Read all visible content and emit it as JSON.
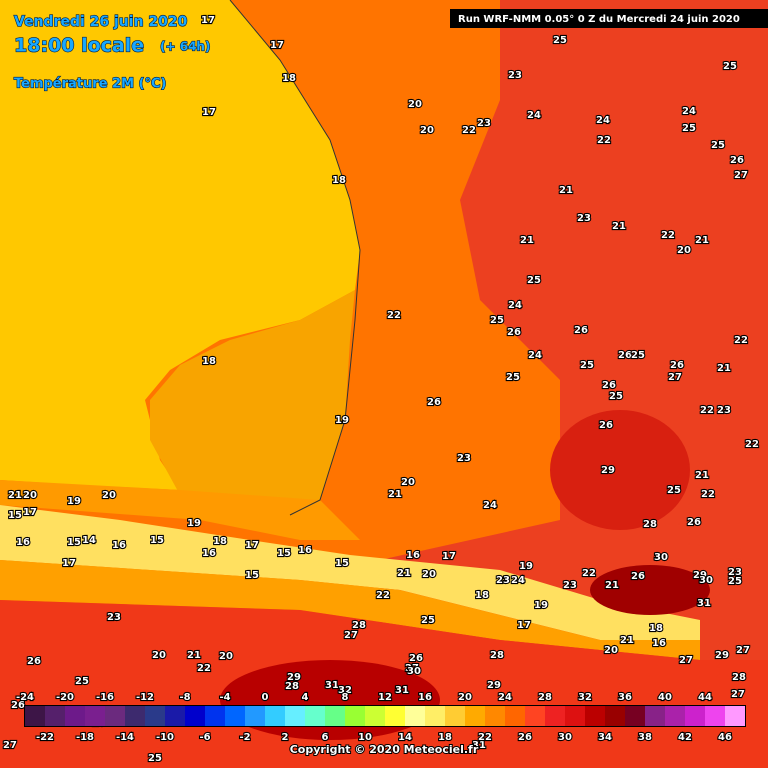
{
  "header": {
    "date": "Vendredi 26 juin 2020",
    "time": "18:00 locale",
    "lead": "(+ 64h)",
    "parameter": "Température 2M (°C)",
    "run": "Run WRF-NMM 0.05° 0 Z du Mercredi 24 juin 2020"
  },
  "map_labels": [
    "17",
    "17",
    "18",
    "17",
    "18",
    "18",
    "19",
    "20",
    "20",
    "22",
    "23",
    "23",
    "25",
    "24",
    "24",
    "22",
    "24",
    "25",
    "25",
    "25",
    "26",
    "27",
    "21",
    "23",
    "21",
    "22",
    "20",
    "21",
    "21",
    "25",
    "24",
    "25",
    "26",
    "22",
    "26",
    "24",
    "25",
    "26",
    "25",
    "26",
    "27",
    "22",
    "21",
    "25",
    "26",
    "25",
    "26",
    "22",
    "23",
    "22",
    "26",
    "23",
    "29",
    "21",
    "25",
    "22",
    "20",
    "21",
    "24",
    "28",
    "26",
    "21",
    "20",
    "19",
    "20",
    "19",
    "15",
    "17",
    "16",
    "15",
    "14",
    "16",
    "15",
    "18",
    "17",
    "16",
    "15",
    "16",
    "17",
    "15",
    "15",
    "16",
    "17",
    "21",
    "20",
    "19",
    "23",
    "24",
    "23",
    "22",
    "21",
    "26",
    "30",
    "29",
    "30",
    "23",
    "25",
    "22",
    "18",
    "19",
    "17",
    "31",
    "23",
    "25",
    "27",
    "28",
    "21",
    "18",
    "16",
    "26",
    "25",
    "20",
    "21",
    "20",
    "22",
    "28",
    "20",
    "27",
    "29",
    "27",
    "26",
    "27",
    "30",
    "29",
    "28",
    "31",
    "32",
    "31",
    "29",
    "28",
    "27",
    "26",
    "25",
    "27",
    "25",
    "31"
  ],
  "legend": {
    "top_labels": [
      -24,
      -20,
      -16,
      -12,
      -8,
      -4,
      0,
      4,
      8,
      12,
      16,
      20,
      24,
      28,
      32,
      36,
      40,
      44
    ],
    "bottom_labels": [
      -22,
      -18,
      -14,
      -10,
      -6,
      -2,
      2,
      6,
      10,
      14,
      18,
      22,
      26,
      30,
      34,
      38,
      42,
      46
    ],
    "colors": [
      "#3d1547",
      "#55206b",
      "#6d1a8a",
      "#7a1f8f",
      "#6b2a7e",
      "#3d2a6e",
      "#2a3a8a",
      "#1a1aa8",
      "#0000cc",
      "#0033ee",
      "#0066ff",
      "#2299ff",
      "#33ccff",
      "#66eeff",
      "#66ffcc",
      "#66ff88",
      "#99ff33",
      "#ccff33",
      "#ffff33",
      "#ffff99",
      "#ffee66",
      "#ffcc33",
      "#ffaa00",
      "#ff8800",
      "#ff6600",
      "#ff4422",
      "#ee2222",
      "#dd1111",
      "#bb0000",
      "#990000",
      "#770022",
      "#882288",
      "#aa22aa",
      "#cc22cc",
      "#ee44ee",
      "#ff99ff"
    ]
  },
  "footer": {
    "copyright": "Copyright © 2020 Meteociel.fr"
  }
}
